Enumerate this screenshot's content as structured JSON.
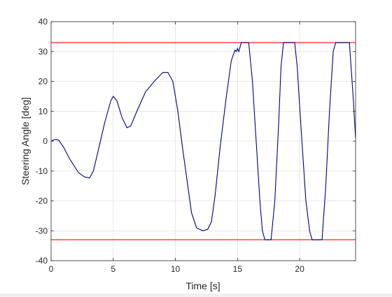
{
  "chart_data": {
    "type": "line",
    "title": "",
    "xlabel": "Time [s]",
    "ylabel": "Steering Angle [deg]",
    "xlim": [
      0,
      24.5
    ],
    "ylim": [
      -40,
      40
    ],
    "xticks": [
      0,
      5,
      10,
      15,
      20
    ],
    "yticks": [
      -40,
      -30,
      -20,
      -10,
      0,
      10,
      20,
      30,
      40
    ],
    "grid": true,
    "legend": "none",
    "colors": {
      "series": "#000080",
      "limits": "#ff3333",
      "grid": "#e0e0e0",
      "axes": "#262626"
    },
    "limits": [
      33,
      -33
    ],
    "series": [
      {
        "x": [
          0,
          0.3,
          0.6,
          1.0,
          1.5,
          2.2,
          2.7,
          3.1,
          3.4,
          3.8,
          4.3,
          4.8,
          5.0,
          5.3,
          5.7,
          6.1,
          6.4,
          6.9,
          7.6,
          8.4,
          9.0,
          9.4,
          9.8,
          10.2,
          10.6,
          11.0,
          11.3,
          11.7,
          12.2,
          12.6,
          12.9,
          13.2,
          13.6,
          14.1,
          14.5,
          14.8,
          14.9,
          15.0,
          15.1,
          15.3,
          15.6,
          15.9,
          16.2,
          16.5,
          16.8,
          17.0,
          17.2,
          17.5,
          17.7,
          18.0,
          18.3,
          18.5,
          18.7,
          19.6,
          19.8,
          20.1,
          20.5,
          20.8,
          21.0,
          21.2,
          21.5,
          21.8,
          22.1,
          22.4,
          22.7,
          22.9,
          23.0,
          24.0,
          24.3,
          24.5
        ],
        "y": [
          0,
          0.6,
          0.4,
          -2.0,
          -6.0,
          -10.5,
          -12.0,
          -12.3,
          -10.0,
          -3.0,
          6.0,
          13.5,
          15.0,
          13.5,
          8.0,
          4.5,
          5.0,
          10.0,
          16.5,
          20.5,
          23.0,
          23.0,
          20.0,
          10.0,
          -3.0,
          -15.0,
          -24.0,
          -29.0,
          -30.0,
          -29.5,
          -27.0,
          -18.0,
          -2.0,
          15.0,
          27.0,
          30.5,
          30.0,
          31.0,
          30.0,
          33.0,
          33.0,
          33.0,
          20.0,
          0,
          -20.0,
          -30.0,
          -33.0,
          -33.0,
          -33.0,
          -20.0,
          5.0,
          25.0,
          33.0,
          33.0,
          25.0,
          5.0,
          -20.0,
          -30.0,
          -33.0,
          -33.0,
          -33.0,
          -33.0,
          -15.0,
          10.0,
          30.0,
          33.0,
          33.0,
          33.0,
          15.0,
          1.0
        ]
      }
    ]
  }
}
